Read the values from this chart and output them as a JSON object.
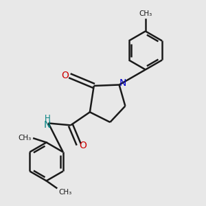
{
  "background_color": "#e8e8e8",
  "bond_color": "#1a1a1a",
  "bond_width": 1.8,
  "N_color": "#0000cc",
  "O_color": "#cc0000",
  "NH_color": "#008080",
  "text_color": "#1a1a1a",
  "figsize": [
    3.0,
    3.0
  ],
  "dpi": 100,
  "xlim": [
    0,
    10
  ],
  "ylim": [
    0,
    10
  ]
}
